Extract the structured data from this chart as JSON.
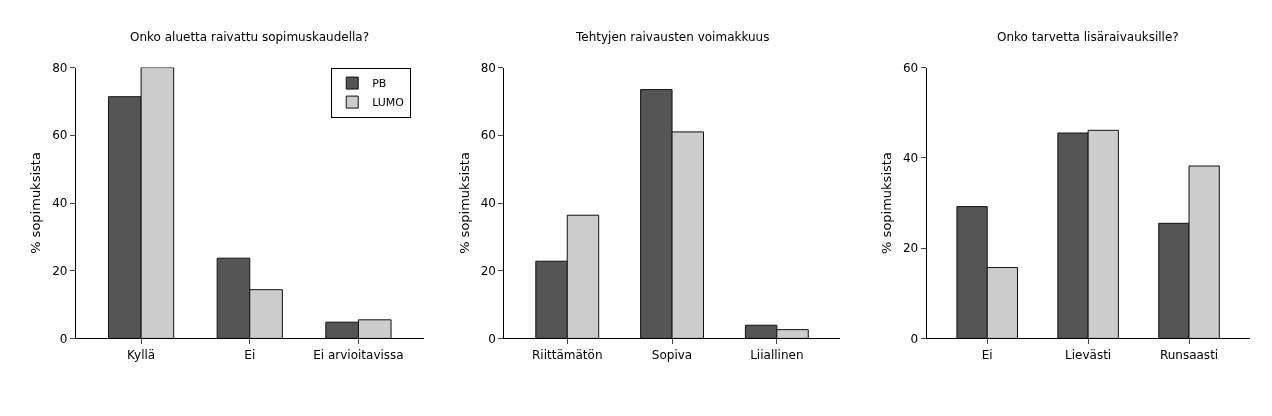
{
  "chart_data": [
    {
      "type": "bar",
      "title": "Onko aluetta raivattu sopimuskaudella?",
      "ylabel": "% sopimuksista",
      "categories": [
        "Kyllä",
        "Ei",
        "Ei arvioitavissa"
      ],
      "series": [
        {
          "name": "PB",
          "color": "#555555",
          "values": [
            71.4,
            23.7,
            4.8
          ]
        },
        {
          "name": "LUMO",
          "color": "#cccccc",
          "values": [
            80,
            14.4,
            5.5
          ]
        }
      ],
      "ylim": [
        0,
        80
      ],
      "yticks": [
        0,
        20,
        40,
        60,
        80
      ],
      "legend": "top right"
    },
    {
      "type": "bar",
      "title": "Tehtyjen raivausten voimakkuus",
      "ylabel": "% sopimuksista",
      "categories": [
        "Riittämätön",
        "Sopiva",
        "Liiallinen"
      ],
      "series": [
        {
          "color": "#555555",
          "values": [
            22.8,
            73.5,
            3.9
          ]
        },
        {
          "color": "#cccccc",
          "values": [
            36.4,
            61.0,
            2.6
          ]
        }
      ],
      "ylim": [
        0,
        80
      ],
      "yticks": [
        0,
        20,
        40,
        60,
        80
      ]
    },
    {
      "type": "bar",
      "title": "Onko tarvetta lisäraivauksille?",
      "ylabel": "% sopimuksista",
      "categories": [
        "Ei",
        "Lievästi",
        "Runsaasti"
      ],
      "series": [
        {
          "color": "#555555",
          "values": [
            29.2,
            45.5,
            25.5
          ]
        },
        {
          "color": "#cccccc",
          "values": [
            15.7,
            46.1,
            38.2
          ]
        }
      ],
      "ylim": [
        0,
        60
      ],
      "yticks": [
        0,
        20,
        40,
        60
      ]
    }
  ]
}
